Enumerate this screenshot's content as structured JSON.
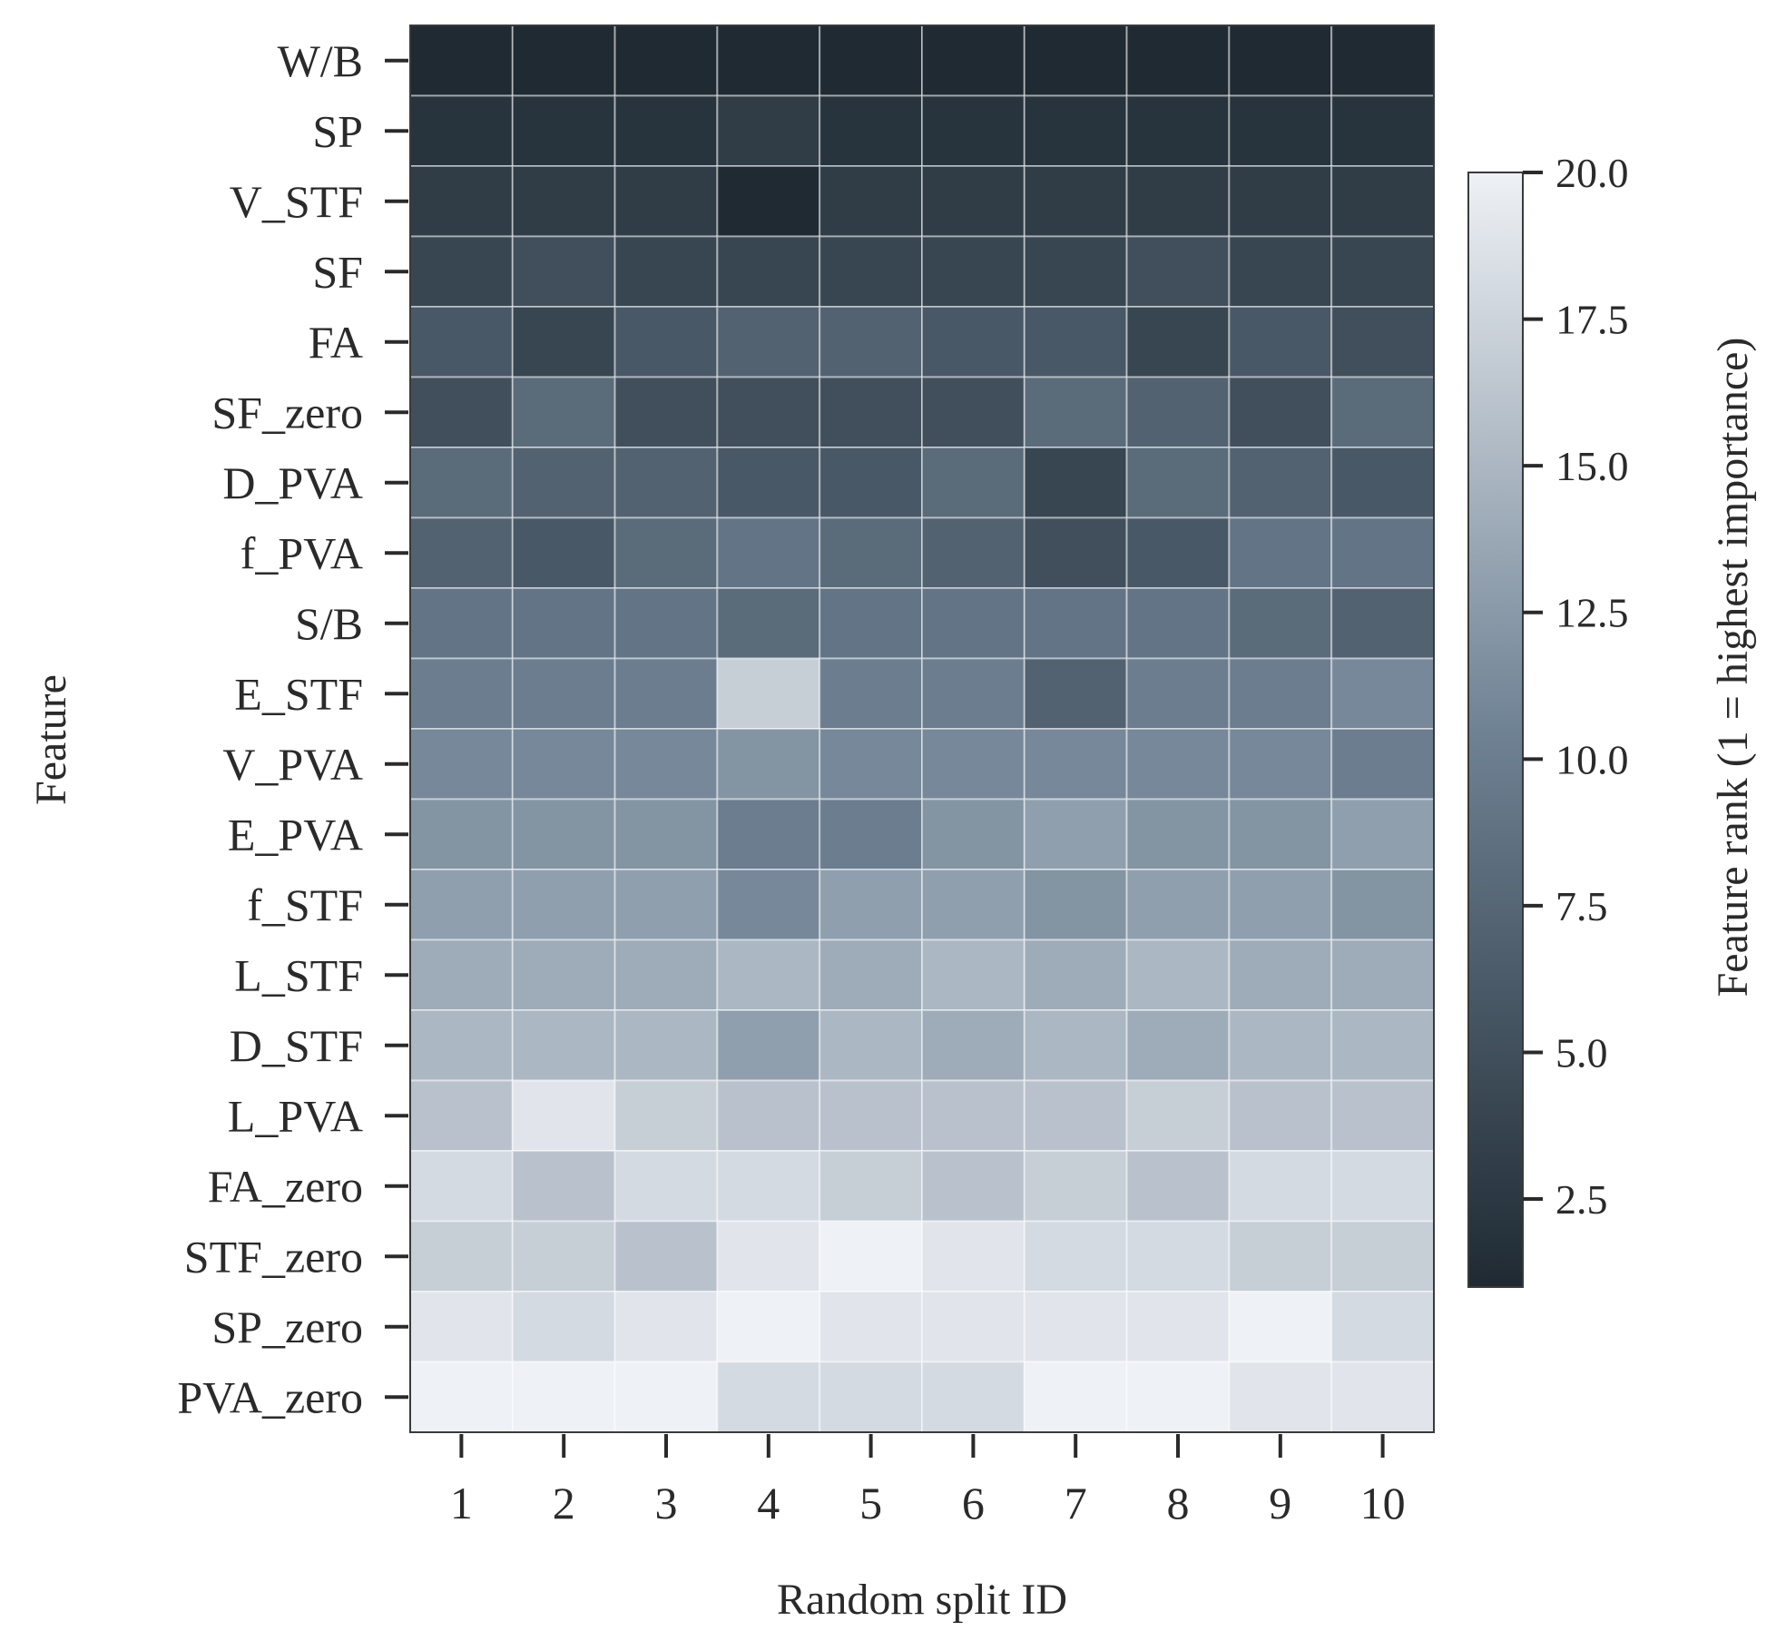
{
  "chart_data": {
    "type": "heatmap",
    "xlabel": "Random split ID",
    "ylabel": "Feature",
    "colorbar_label": "Feature rank (1 = highest importance)",
    "x_categories": [
      "1",
      "2",
      "3",
      "4",
      "5",
      "6",
      "7",
      "8",
      "9",
      "10"
    ],
    "y_categories": [
      "W/B",
      "SP",
      "V_STF",
      "SF",
      "FA",
      "SF_zero",
      "D_PVA",
      "f_PVA",
      "S/B",
      "E_STF",
      "V_PVA",
      "E_PVA",
      "f_STF",
      "L_STF",
      "D_STF",
      "L_PVA",
      "FA_zero",
      "STF_zero",
      "SP_zero",
      "PVA_zero"
    ],
    "values": [
      [
        1,
        1,
        1,
        1,
        1,
        1,
        1,
        1,
        1,
        1
      ],
      [
        2,
        2,
        2,
        3,
        2,
        2,
        2,
        2,
        2,
        2
      ],
      [
        3,
        3,
        3,
        1,
        3,
        3,
        3,
        3,
        3,
        3
      ],
      [
        4,
        5,
        4,
        4,
        4,
        4,
        4,
        5,
        4,
        4
      ],
      [
        6,
        4,
        6,
        7,
        7,
        6,
        6,
        4,
        6,
        5
      ],
      [
        5,
        8,
        5,
        5,
        5,
        5,
        8,
        7,
        5,
        8
      ],
      [
        8,
        7,
        7,
        6,
        6,
        8,
        4,
        8,
        7,
        6
      ],
      [
        7,
        6,
        8,
        9,
        8,
        7,
        5,
        6,
        9,
        9
      ],
      [
        9,
        9,
        9,
        8,
        9,
        9,
        9,
        9,
        8,
        7
      ],
      [
        10,
        10,
        10,
        17,
        10,
        10,
        7,
        10,
        10,
        11
      ],
      [
        11,
        11,
        11,
        12,
        11,
        11,
        11,
        11,
        11,
        10
      ],
      [
        12,
        12,
        12,
        10,
        10,
        12,
        13,
        12,
        12,
        13
      ],
      [
        13,
        13,
        13,
        11,
        13,
        13,
        12,
        13,
        13,
        12
      ],
      [
        14,
        14,
        14,
        15,
        14,
        15,
        14,
        15,
        14,
        14
      ],
      [
        15,
        15,
        15,
        13,
        15,
        14,
        15,
        14,
        15,
        15
      ],
      [
        16,
        19,
        17,
        16,
        16,
        16,
        16,
        17,
        16,
        16
      ],
      [
        18,
        16,
        18,
        18,
        17,
        16,
        17,
        16,
        18,
        18
      ],
      [
        17,
        17,
        16,
        19,
        20,
        19,
        18,
        18,
        17,
        17
      ],
      [
        19,
        18,
        19,
        20,
        19,
        19,
        19,
        19,
        20,
        18
      ],
      [
        20,
        20,
        20,
        18,
        18,
        18,
        20,
        20,
        19,
        19
      ]
    ],
    "colorbar_ticks": [
      "2.5",
      "5.0",
      "7.5",
      "10.0",
      "12.5",
      "15.0",
      "17.5",
      "20.0"
    ],
    "vmin": 1,
    "vmax": 20,
    "colormap": {
      "low": "#1f2a33",
      "mid": "#6f8294",
      "high": "#eef1f5"
    },
    "grid": true
  }
}
